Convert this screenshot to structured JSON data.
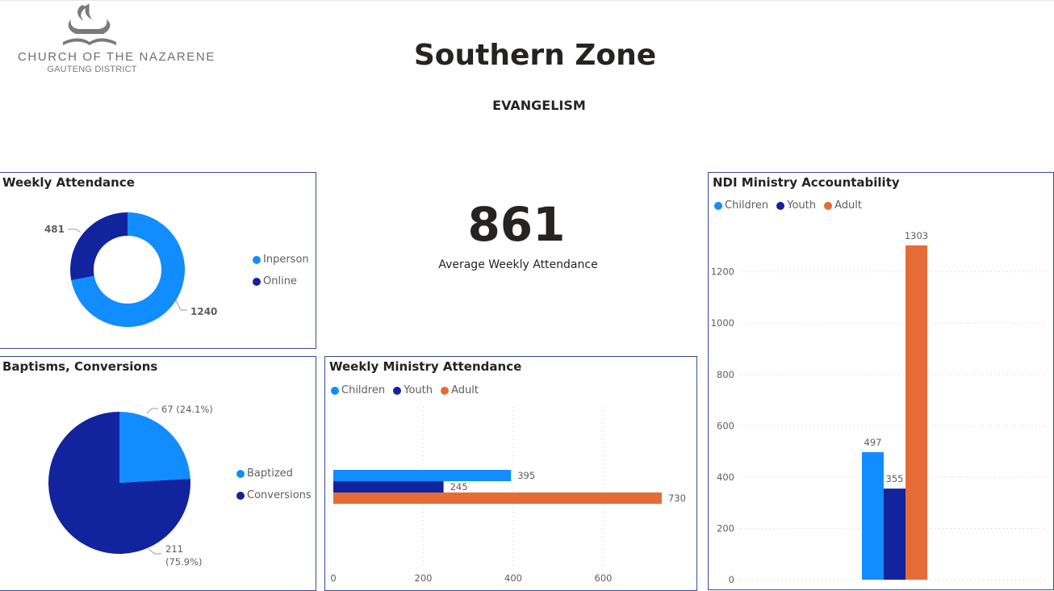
{
  "header": {
    "logo_text_main": "CHURCH OF THE NAZARENE",
    "logo_text_sub": "GAUTENG DISTRICT",
    "title": "Southern Zone",
    "subtitle": "EVANGELISM"
  },
  "kpi": {
    "value": "861",
    "label": "Average Weekly Attendance"
  },
  "colors": {
    "children": "#118DFF",
    "youth": "#12239E",
    "adult": "#E66C37",
    "panel_border": "#3b4a96"
  },
  "chart_data": [
    {
      "id": "weekly-attendance",
      "type": "donut",
      "title": "Weekly Attendance",
      "categories": [
        "Inperson",
        "Online"
      ],
      "values": [
        1240,
        481
      ],
      "legend": "right"
    },
    {
      "id": "baptisms-conversions",
      "type": "pie",
      "title": "Baptisms, Conversions",
      "categories": [
        "Baptized",
        "Conversions"
      ],
      "values": [
        67,
        211
      ],
      "data_labels": [
        [
          "67 (24.1%)"
        ],
        [
          "211",
          "(75.9%)"
        ]
      ],
      "legend": "right"
    },
    {
      "id": "weekly-ministry-attendance",
      "type": "bar",
      "orientation": "horizontal",
      "title": "Weekly Ministry Attendance",
      "series": [
        {
          "name": "Children",
          "values": [
            395
          ]
        },
        {
          "name": "Youth",
          "values": [
            245
          ]
        },
        {
          "name": "Adult",
          "values": [
            730
          ]
        }
      ],
      "xlim": [
        0,
        780
      ],
      "xticks": [
        0,
        200,
        400,
        600
      ],
      "grid": true,
      "legend": "top-left"
    },
    {
      "id": "ndi-ministry-accountability",
      "type": "bar",
      "orientation": "vertical",
      "title": "NDI Ministry Accountability",
      "series": [
        {
          "name": "Children",
          "values": [
            497
          ]
        },
        {
          "name": "Youth",
          "values": [
            355
          ]
        },
        {
          "name": "Adult",
          "values": [
            1303
          ]
        }
      ],
      "ylim": [
        0,
        1400
      ],
      "yticks": [
        0,
        200,
        400,
        600,
        800,
        1000,
        1200
      ],
      "grid": true,
      "legend": "top-left"
    }
  ]
}
